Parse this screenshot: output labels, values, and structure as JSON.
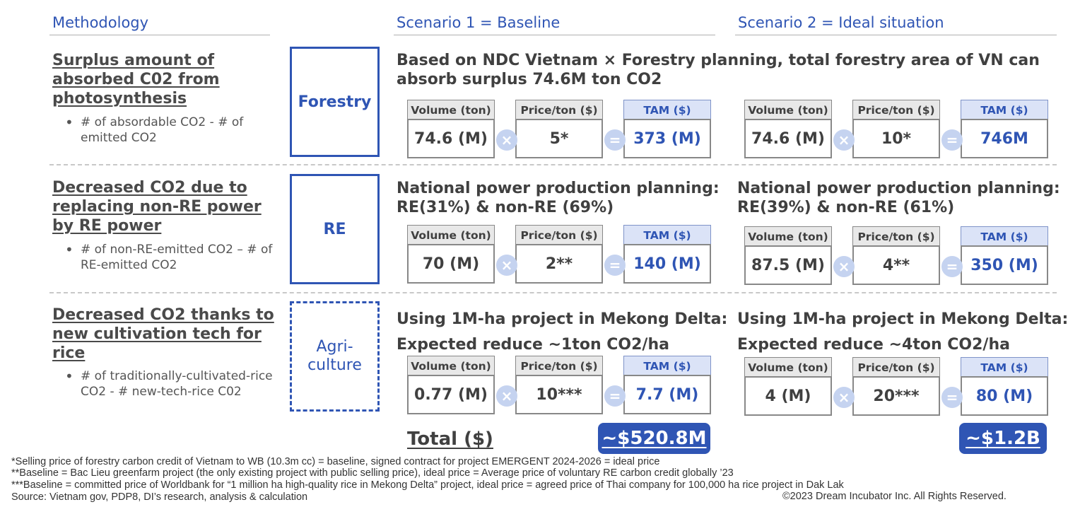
{
  "headers": {
    "methodology": "Methodology",
    "scenario1": "Scenario 1 = Baseline",
    "scenario2": "Scenario 2 = Ideal situation"
  },
  "operators": {
    "times": "×",
    "equals": "="
  },
  "rows": [
    {
      "method_title": "Surplus amount of absorbed C02 from photosynthesis",
      "method_bullet": "# of absordable CO2 - # of emitted CO2",
      "category": "Forestry",
      "scenario1": {
        "desc_line1": "Based on NDC Vietnam × Forestry planning, total forestry area of VN can",
        "desc_line2": "absorb surplus 74.6M ton CO2",
        "volume_label": "Volume (ton)",
        "volume": "74.6 (M)",
        "price_label": "Price/ton ($)",
        "price": "5*",
        "tam_label": "TAM ($)",
        "tam": "373 (M)"
      },
      "scenario2": {
        "desc_line1": "",
        "desc_line2": "",
        "volume_label": "Volume (ton)",
        "volume": "74.6 (M)",
        "price_label": "Price/ton ($)",
        "price": "10*",
        "tam_label": "TAM ($)",
        "tam": "746M"
      }
    },
    {
      "method_title": "Decreased CO2 due to replacing non-RE power by RE power",
      "method_bullet": "# of non-RE-emitted CO2 – # of RE-emitted CO2",
      "category": "RE",
      "scenario1": {
        "desc_line1": "National power production planning:",
        "desc_line2": "RE(31%) & non-RE (69%)",
        "volume_label": "Volume (ton)",
        "volume": "70 (M)",
        "price_label": "Price/ton ($)",
        "price": "2**",
        "tam_label": "TAM ($)",
        "tam": "140 (M)"
      },
      "scenario2": {
        "desc_line1": "National power production planning:",
        "desc_line2": "RE(39%) & non-RE (61%)",
        "volume_label": "Volume (ton)",
        "volume": "87.5 (M)",
        "price_label": "Price/ton ($)",
        "price": "4**",
        "tam_label": "TAM ($)",
        "tam": "350 (M)"
      }
    },
    {
      "method_title": "Decreased CO2 thanks to new cultivation tech for rice",
      "method_bullet": "# of traditionally-cultivated-rice CO2 - # new-tech-rice C02",
      "category_line1": "Agri-",
      "category_line2": "culture",
      "scenario1": {
        "desc_line1": "Using 1M-ha project in Mekong Delta:",
        "desc_line2": "Expected reduce ~1ton CO2/ha",
        "volume_label": "Volume (ton)",
        "volume": "0.77 (M)",
        "price_label": "Price/ton ($)",
        "price": "10***",
        "tam_label": "TAM ($)",
        "tam": "7.7 (M)"
      },
      "scenario2": {
        "desc_line1": "Using 1M-ha project in Mekong Delta:",
        "desc_line2": "Expected reduce ~4ton CO2/ha",
        "volume_label": "Volume (ton)",
        "volume": "4 (M)",
        "price_label": "Price/ton ($)",
        "price": "20***",
        "tam_label": "TAM ($)",
        "tam": "80 (M)"
      }
    }
  ],
  "total": {
    "label": "Total ($)",
    "scenario1": "~$520.8M",
    "scenario2": "~$1.2B"
  },
  "footnotes": [
    "*Selling price of forestry carbon credit of Vietnam to WB (10.3m cc) = baseline, signed contract for project EMERGENT 2024-2026 = ideal price",
    "**Baseline = Bac Lieu greenfarm project (the only existing project with public selling price), ideal price = Average price of voluntary RE carbon credit globally ’23",
    "***Baseline = committed price of Worldbank for “1 million ha high-quality rice in Mekong Delta” project, ideal price = agreed price of Thai company for 100,000 ha rice project in Dak Lak"
  ],
  "source": "Source: Vietnam gov, PDP8, DI’s research, analysis & calculation",
  "copyright": "©2023 Dream Incubator Inc. All Rights Reserved.",
  "colors": {
    "accent": "#2f55b4",
    "tam_header_bg": "#dbe3f7",
    "operator_bg": "#c5d3f0"
  }
}
